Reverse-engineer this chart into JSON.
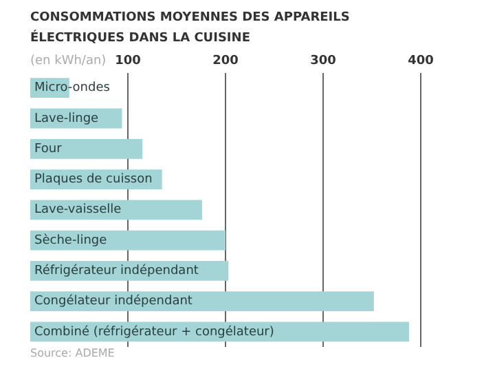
{
  "chart_data": {
    "type": "bar",
    "orientation": "horizontal",
    "title": "CONSOMMATIONS MOYENNES DES APPAREILS ÉLECTRIQUES DANS LA CUISINE",
    "xlabel": "(en kWh/an)",
    "categories": [
      "Micro-ondes",
      "Lave-linge",
      "Four",
      "Plaques de cuisson",
      "Lave-vaisselle",
      "Sèche-linge",
      "Réfrigérateur indépendant",
      "Congélateur indépendant",
      "Combiné (réfrigérateur + congélateur)"
    ],
    "values": [
      40,
      94,
      115,
      135,
      176,
      200,
      203,
      352,
      388
    ],
    "color": "#a3d5d6",
    "xlim": [
      0,
      400
    ],
    "xticks": [
      100,
      200,
      300,
      400
    ],
    "grid": "x",
    "legend": false,
    "annotations": [
      "Source: ADEME"
    ]
  }
}
